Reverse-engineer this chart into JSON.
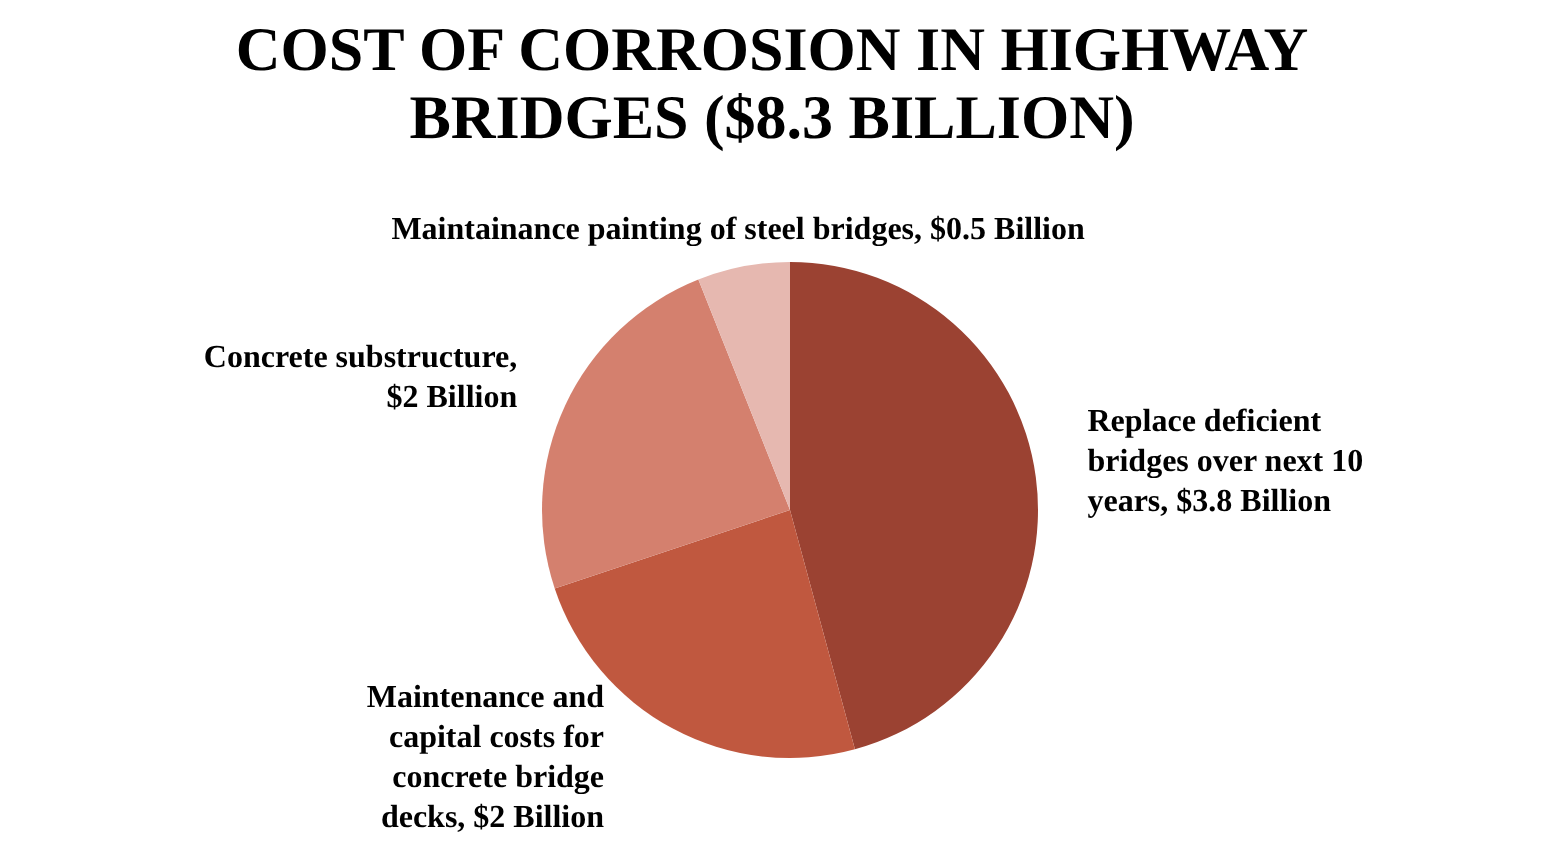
{
  "chart_data": {
    "type": "pie",
    "title": "COST OF CORROSION IN HIGHWAY BRIDGES ($8.3 BILLION)",
    "categories": [
      "Replace deficient bridges over next 10 years, $3.8 Billion",
      "Maintenance and capital costs for concrete bridge decks, $2 Billion",
      "Concrete substructure, $2 Billion",
      "Maintainance painting of steel bridges, $0.5 Billion"
    ],
    "values": [
      3.8,
      2,
      2,
      0.5
    ],
    "colors": [
      "#9b4232",
      "#c0583f",
      "#d4806e",
      "#e6b8b0"
    ]
  }
}
